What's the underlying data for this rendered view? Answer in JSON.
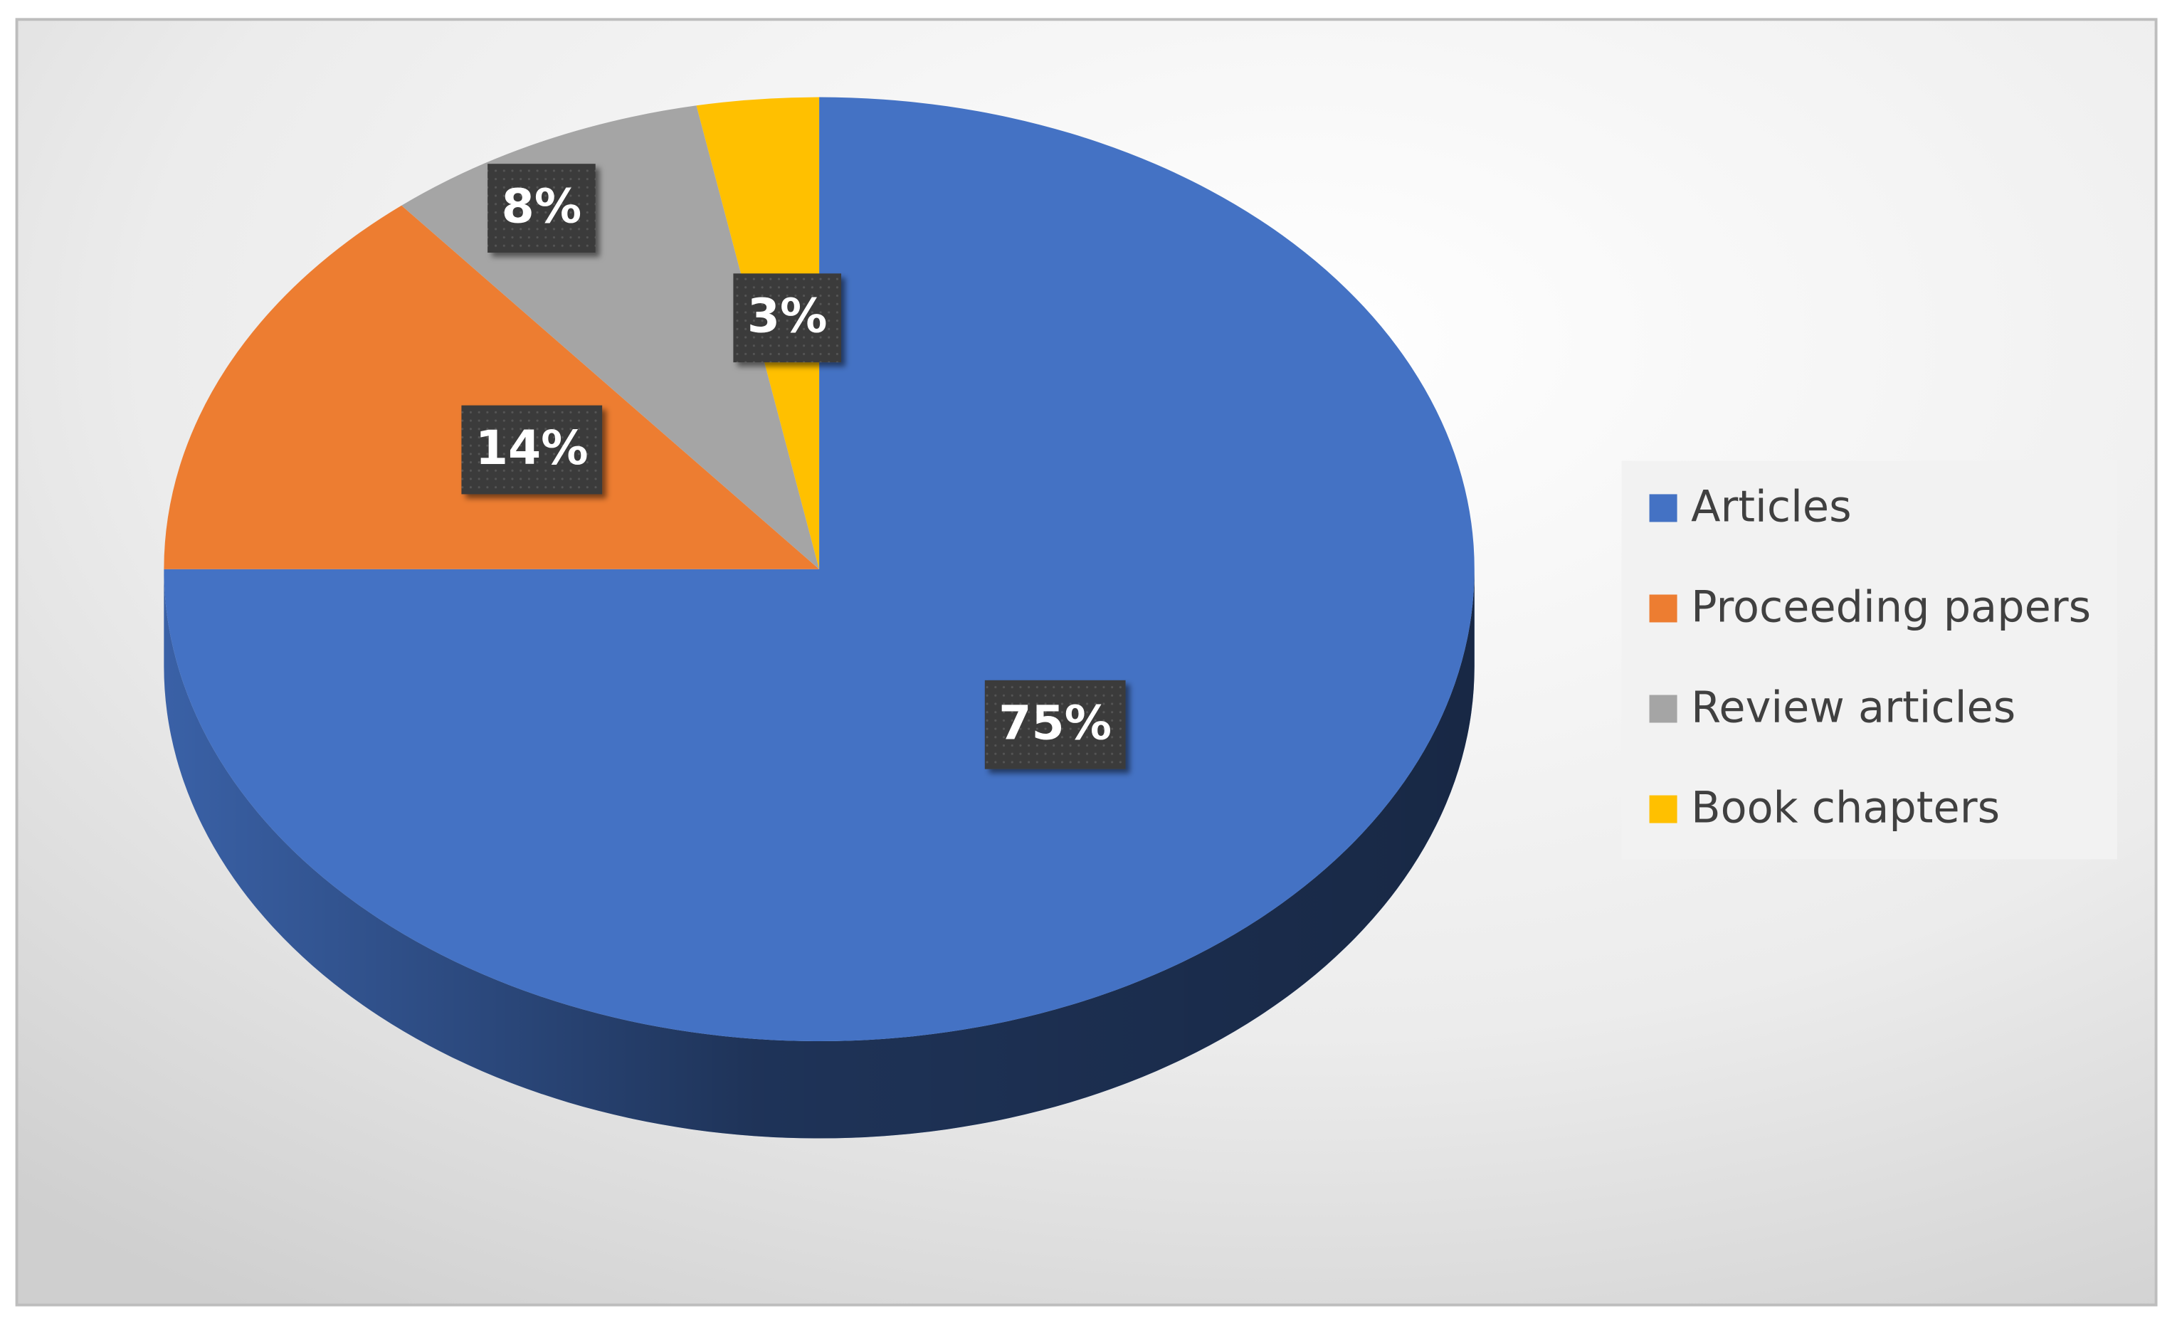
{
  "chart_data": {
    "type": "pie",
    "categories": [
      "Articles",
      "Proceeding papers",
      "Review articles",
      "Book chapters"
    ],
    "values": [
      75,
      14,
      8,
      3
    ],
    "value_labels": [
      "75%",
      "14%",
      "8%",
      "3%"
    ],
    "colors": [
      "#4472c4",
      "#ed7d31",
      "#a5a5a5",
      "#ffc000"
    ],
    "legend": "right"
  }
}
